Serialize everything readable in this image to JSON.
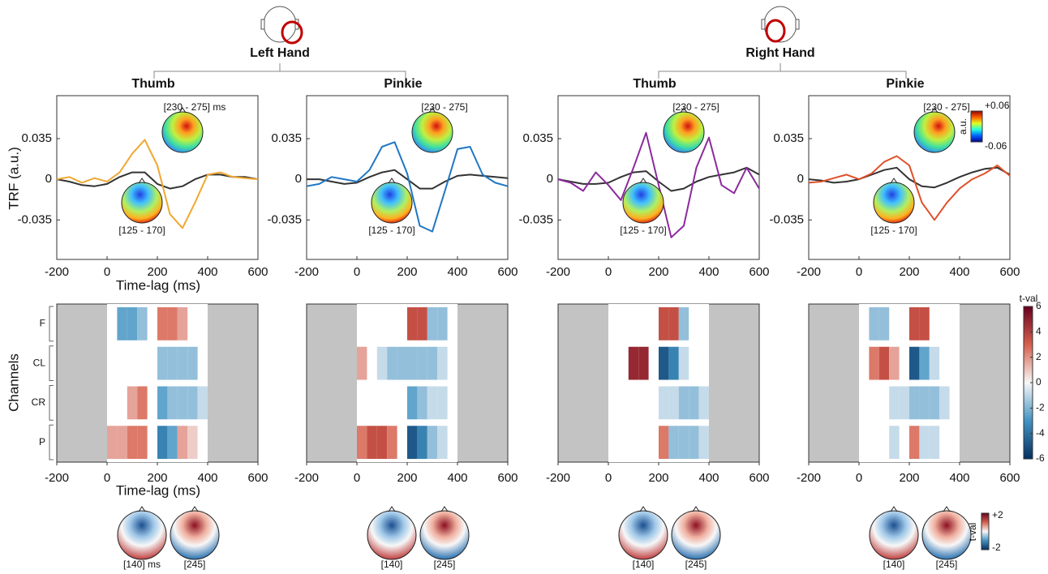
{
  "groups": [
    {
      "title": "Left Hand"
    },
    {
      "title": "Right Hand"
    }
  ],
  "chart_data": [
    {
      "type": "line",
      "title": "Thumb",
      "ylabel": "TRF (a.u.)",
      "xlabel": "Time-lag (ms)",
      "x": [
        -200,
        -150,
        -100,
        -50,
        0,
        50,
        100,
        150,
        200,
        250,
        300,
        350,
        400,
        450,
        500,
        550,
        600
      ],
      "series": [
        {
          "color": "#f0a830",
          "values": [
            0,
            0.002,
            -0.003,
            0.001,
            -0.002,
            0.006,
            0.022,
            0.034,
            0.012,
            -0.03,
            -0.042,
            -0.02,
            0.004,
            0.006,
            0.002,
            0.001,
            0
          ]
        },
        {
          "color": "#333333",
          "values": [
            0,
            -0.002,
            -0.005,
            -0.006,
            -0.004,
            0.002,
            0.006,
            0.006,
            -0.004,
            -0.008,
            -0.006,
            0,
            0.004,
            0.004,
            0.002,
            0.002,
            0
          ]
        }
      ],
      "xlim": [
        -200,
        600
      ],
      "ylim": [
        -0.069,
        0.072
      ],
      "xticks": [
        -200,
        0,
        200,
        400,
        600
      ],
      "yticks": [
        -0.035,
        0,
        0.035
      ],
      "annotations": [
        "[230 - 275] ms",
        "[125 - 170]"
      ]
    },
    {
      "type": "line",
      "title": "Pinkie",
      "x": [
        -200,
        -150,
        -100,
        -50,
        0,
        50,
        100,
        150,
        200,
        250,
        300,
        350,
        400,
        450,
        500,
        550,
        600
      ],
      "series": [
        {
          "color": "#1f77c4",
          "values": [
            -0.006,
            -0.004,
            0.002,
            0,
            -0.002,
            0.008,
            0.028,
            0.032,
            0.005,
            -0.04,
            -0.045,
            -0.01,
            0.026,
            0.028,
            0.004,
            -0.003,
            -0.006
          ]
        },
        {
          "color": "#333333",
          "values": [
            0,
            0,
            -0.002,
            -0.004,
            -0.003,
            0.002,
            0.006,
            0.008,
            0,
            -0.008,
            -0.008,
            -0.002,
            0.003,
            0.004,
            0.003,
            0.002,
            0.001
          ]
        }
      ],
      "xlim": [
        -200,
        600
      ],
      "ylim": [
        -0.069,
        0.072
      ],
      "xticks": [
        -200,
        0,
        200,
        400,
        600
      ],
      "yticks": [
        -0.035,
        0,
        0.035
      ],
      "annotations": [
        "[230 - 275]",
        "[125 - 170]"
      ]
    },
    {
      "type": "line",
      "title": "Thumb",
      "x": [
        -200,
        -150,
        -100,
        -50,
        0,
        50,
        100,
        150,
        200,
        250,
        300,
        350,
        400,
        450,
        500,
        550,
        600
      ],
      "series": [
        {
          "color": "#8b2a9c",
          "values": [
            0,
            -0.003,
            -0.01,
            0.006,
            -0.005,
            -0.018,
            0.01,
            0.04,
            -0.005,
            -0.05,
            -0.04,
            0.01,
            0.036,
            -0.005,
            -0.012,
            0.01,
            -0.008
          ]
        },
        {
          "color": "#333333",
          "values": [
            0,
            -0.002,
            -0.004,
            -0.004,
            -0.003,
            0.002,
            0.006,
            0.007,
            -0.002,
            -0.01,
            -0.008,
            -0.002,
            0.002,
            0.004,
            0.006,
            0.01,
            0.004
          ]
        }
      ],
      "xlim": [
        -200,
        600
      ],
      "ylim": [
        -0.069,
        0.072
      ],
      "xticks": [
        -200,
        0,
        200,
        400,
        600
      ],
      "yticks": [
        -0.035,
        0,
        0.035
      ],
      "annotations": [
        "[230 - 275]",
        "[125 - 170]"
      ]
    },
    {
      "type": "line",
      "title": "Pinkie",
      "x": [
        -200,
        -150,
        -100,
        -50,
        0,
        50,
        100,
        150,
        200,
        250,
        300,
        350,
        400,
        450,
        500,
        550,
        600
      ],
      "series": [
        {
          "color": "#e0502a",
          "values": [
            -0.003,
            -0.002,
            0.001,
            0.004,
            0,
            0.005,
            0.015,
            0.02,
            0.012,
            -0.02,
            -0.035,
            -0.02,
            -0.008,
            0,
            0.005,
            0.012,
            0.003
          ]
        },
        {
          "color": "#333333",
          "values": [
            0,
            -0.001,
            -0.003,
            -0.002,
            0,
            0.004,
            0.008,
            0.01,
            0,
            -0.006,
            -0.007,
            -0.003,
            0.002,
            0.006,
            0.009,
            0.01,
            0.004
          ]
        }
      ],
      "xlim": [
        -200,
        600
      ],
      "ylim": [
        -0.069,
        0.072
      ],
      "xticks": [
        -200,
        0,
        200,
        400,
        600
      ],
      "yticks": [
        -0.035,
        0,
        0.035
      ],
      "annotations": [
        "[230 - 275]",
        "[125 - 170]"
      ],
      "colorbar": {
        "label": "a.u.",
        "max_label": "+0.06",
        "min_label": "-0.06"
      }
    },
    {
      "type": "heatmap",
      "ylabel": "Channels",
      "xlabel": "Time-lag (ms)",
      "x": [
        0,
        40,
        80,
        120,
        160,
        200,
        240,
        280,
        320,
        360,
        400
      ],
      "rows": [
        "F",
        "CL",
        "CR",
        "P"
      ],
      "values": [
        [
          null,
          -3,
          -3,
          -2,
          null,
          3,
          3,
          2,
          null,
          null
        ],
        [
          null,
          null,
          null,
          null,
          null,
          -2,
          -2,
          -2,
          -2,
          null
        ],
        [
          null,
          null,
          2,
          3,
          null,
          -3,
          -2,
          -2,
          -2,
          -1
        ],
        [
          2,
          2,
          3,
          3,
          null,
          -4,
          -3,
          2,
          1,
          null
        ]
      ],
      "xlim": [
        -200,
        600
      ],
      "xticks": [
        -200,
        0,
        200,
        400,
        600
      ],
      "topomap_labels": [
        "[140] ms",
        "[245]"
      ]
    },
    {
      "type": "heatmap",
      "x": [
        0,
        40,
        80,
        120,
        160,
        200,
        240,
        280,
        320,
        360,
        400
      ],
      "rows": [
        null,
        null,
        null,
        null
      ],
      "values": [
        [
          null,
          null,
          null,
          null,
          null,
          4,
          4,
          -2,
          -2,
          null
        ],
        [
          2,
          null,
          -1,
          -2,
          -2,
          -2,
          -2,
          -2,
          -1,
          null
        ],
        [
          null,
          null,
          null,
          null,
          null,
          -3,
          -2,
          -1,
          -1,
          null
        ],
        [
          3,
          4,
          4,
          3,
          null,
          -5,
          -4,
          -2,
          -1,
          null
        ]
      ],
      "xlim": [
        -200,
        600
      ],
      "xticks": [
        -200,
        0,
        200,
        400,
        600
      ],
      "topomap_labels": [
        "[140]",
        "[245]"
      ]
    },
    {
      "type": "heatmap",
      "x": [
        0,
        40,
        80,
        120,
        160,
        200,
        240,
        280,
        320,
        360,
        400
      ],
      "rows": [
        null,
        null,
        null,
        null
      ],
      "values": [
        [
          null,
          null,
          null,
          null,
          null,
          4,
          4,
          -2,
          null,
          null
        ],
        [
          null,
          null,
          5,
          5,
          null,
          -5,
          -4,
          -1,
          null,
          null
        ],
        [
          null,
          null,
          null,
          null,
          null,
          -1,
          -1,
          -2,
          -2,
          -1
        ],
        [
          null,
          null,
          null,
          null,
          null,
          3,
          -2,
          -2,
          -2,
          -1
        ]
      ],
      "xlim": [
        -200,
        600
      ],
      "xticks": [
        -200,
        0,
        200,
        400,
        600
      ],
      "topomap_labels": [
        "[140]",
        "[245]"
      ]
    },
    {
      "type": "heatmap",
      "x": [
        0,
        40,
        80,
        120,
        160,
        200,
        240,
        280,
        320,
        360,
        400
      ],
      "rows": [
        null,
        null,
        null,
        null
      ],
      "values": [
        [
          null,
          -2,
          -2,
          null,
          null,
          4,
          4,
          null,
          null,
          null
        ],
        [
          null,
          3,
          4,
          2,
          null,
          -5,
          -3,
          -1,
          null,
          null
        ],
        [
          null,
          null,
          null,
          -1,
          -1,
          -2,
          -2,
          -2,
          -1,
          null
        ],
        [
          null,
          null,
          null,
          -1,
          null,
          3,
          -1,
          -1,
          null,
          null
        ]
      ],
      "xlim": [
        -200,
        600
      ],
      "xticks": [
        -200,
        0,
        200,
        400,
        600
      ],
      "topomap_labels": [
        "[140]",
        "[245]"
      ],
      "colorbar": {
        "label": "t-val",
        "lim": [
          -6,
          6
        ],
        "ticks": [
          6,
          4,
          2,
          0,
          -2,
          -4,
          -6
        ]
      },
      "topo_colorbar": {
        "label": "t-val",
        "max_label": "+2",
        "min_label": "-2"
      }
    }
  ]
}
